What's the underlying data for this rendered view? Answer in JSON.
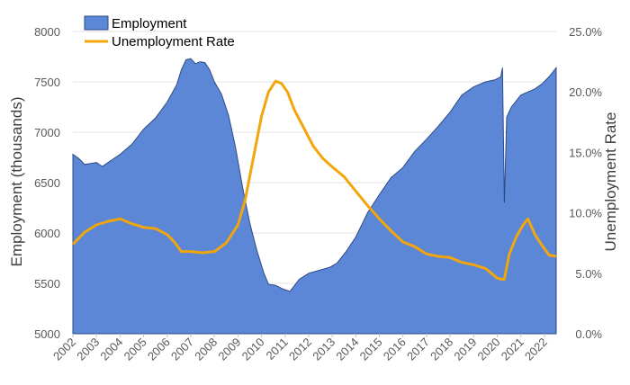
{
  "chart_data": {
    "type": "area",
    "ylabel": "Employment (thousands)",
    "y2label": "Unemployment Rate",
    "ylim": [
      5000,
      8000
    ],
    "y2lim": [
      0,
      0.25
    ],
    "yticks": [
      "5000",
      "5500",
      "6000",
      "6500",
      "7000",
      "7500",
      "8000"
    ],
    "y2ticks": [
      "0.0%",
      "5.0%",
      "10.0%",
      "15.0%",
      "20.0%",
      "25.0%"
    ],
    "xlim": [
      2002,
      2022.5
    ],
    "xticks": [
      "2002",
      "2003",
      "2004",
      "2005",
      "2006",
      "2007",
      "2008",
      "2009",
      "2010",
      "2011",
      "2012",
      "2013",
      "2014",
      "2015",
      "2016",
      "2017",
      "2018",
      "2019",
      "2020",
      "2021",
      "2022"
    ],
    "grid": true,
    "legend_position": "top-left",
    "colors": {
      "employment_fill": "#5b87d6",
      "employment_edge": "#2e4a86",
      "unemployment_line": "#f2a60c",
      "grid": "#e3e3e3"
    },
    "series": [
      {
        "name": "Employment",
        "axis": "left",
        "style": "area",
        "x": [
          2002.0,
          2002.25,
          2002.5,
          2002.75,
          2003.0,
          2003.25,
          2003.5,
          2003.75,
          2004.0,
          2004.5,
          2005.0,
          2005.5,
          2006.0,
          2006.4,
          2006.6,
          2006.8,
          2007.0,
          2007.2,
          2007.4,
          2007.6,
          2007.8,
          2008.0,
          2008.3,
          2008.6,
          2008.9,
          2009.2,
          2009.5,
          2009.8,
          2010.1,
          2010.3,
          2010.6,
          2010.85,
          2011.2,
          2011.6,
          2012.0,
          2012.3,
          2012.6,
          2012.9,
          2013.2,
          2013.6,
          2014.0,
          2014.5,
          2015.0,
          2015.5,
          2016.0,
          2016.5,
          2017.0,
          2017.5,
          2018.0,
          2018.5,
          2019.0,
          2019.5,
          2019.9,
          2020.15,
          2020.22,
          2020.3,
          2020.4,
          2020.6,
          2020.8,
          2021.0,
          2021.3,
          2021.6,
          2021.9,
          2022.2,
          2022.5
        ],
        "values": [
          6780,
          6740,
          6680,
          6690,
          6700,
          6660,
          6700,
          6740,
          6780,
          6880,
          7030,
          7140,
          7300,
          7470,
          7620,
          7720,
          7730,
          7680,
          7700,
          7690,
          7620,
          7500,
          7380,
          7170,
          6850,
          6450,
          6100,
          5830,
          5600,
          5490,
          5480,
          5450,
          5420,
          5540,
          5600,
          5620,
          5640,
          5660,
          5700,
          5820,
          5960,
          6200,
          6380,
          6550,
          6650,
          6810,
          6930,
          7060,
          7200,
          7370,
          7450,
          7500,
          7520,
          7550,
          7640,
          6300,
          7150,
          7250,
          7310,
          7370,
          7400,
          7430,
          7480,
          7550,
          7640
        ]
      },
      {
        "name": "Unemployment Rate",
        "axis": "right",
        "style": "line",
        "x": [
          2002.0,
          2002.5,
          2003.0,
          2003.5,
          2004.0,
          2004.5,
          2005.0,
          2005.5,
          2006.0,
          2006.3,
          2006.6,
          2007.0,
          2007.5,
          2008.0,
          2008.5,
          2009.0,
          2009.3,
          2009.6,
          2010.0,
          2010.3,
          2010.6,
          2010.85,
          2011.1,
          2011.4,
          2011.8,
          2012.2,
          2012.6,
          2013.0,
          2013.5,
          2014.0,
          2014.5,
          2015.0,
          2015.5,
          2016.0,
          2016.5,
          2017.0,
          2017.5,
          2018.0,
          2018.5,
          2019.0,
          2019.5,
          2020.0,
          2020.2,
          2020.3,
          2020.5,
          2020.8,
          2021.1,
          2021.3,
          2021.6,
          2021.9,
          2022.2,
          2022.5
        ],
        "values": [
          0.074,
          0.084,
          0.09,
          0.093,
          0.095,
          0.091,
          0.088,
          0.087,
          0.082,
          0.076,
          0.068,
          0.068,
          0.067,
          0.068,
          0.075,
          0.09,
          0.11,
          0.14,
          0.18,
          0.2,
          0.209,
          0.207,
          0.2,
          0.185,
          0.17,
          0.155,
          0.145,
          0.138,
          0.13,
          0.118,
          0.106,
          0.095,
          0.085,
          0.076,
          0.072,
          0.066,
          0.064,
          0.063,
          0.059,
          0.057,
          0.054,
          0.046,
          0.045,
          0.045,
          0.065,
          0.08,
          0.09,
          0.095,
          0.082,
          0.073,
          0.065,
          0.064
        ]
      }
    ]
  }
}
